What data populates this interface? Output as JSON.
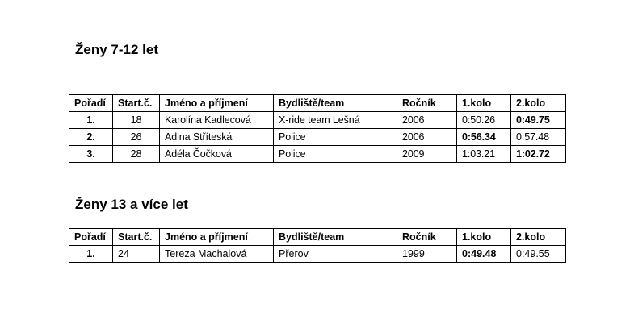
{
  "headers": [
    "Pořadí",
    "Start.č.",
    "Jméno a příjmení",
    "Bydliště/team",
    "Ročník",
    "1.kolo",
    "2.kolo"
  ],
  "sections": [
    {
      "title": "Ženy 7-12 let",
      "rows": [
        {
          "rank": "1.",
          "start": "18",
          "name": "Karolína Kadlecová",
          "team": "X-ride team Lešná",
          "year": "2006",
          "r1": "0:50.26",
          "r2": "0:49.75",
          "best": "r2"
        },
        {
          "rank": "2.",
          "start": "26",
          "name": "Adina Stříteská",
          "team": "Police",
          "year": "2006",
          "r1": "0:56.34",
          "r2": "0:57.48",
          "best": "r1"
        },
        {
          "rank": "3.",
          "start": "28",
          "name": "Adéla Čočková",
          "team": "Police",
          "year": "2009",
          "r1": "1:03.21",
          "r2": "1:02.72",
          "best": "r2"
        }
      ]
    },
    {
      "title": "Ženy 13 a více let",
      "rows": [
        {
          "rank": "1.",
          "start": "24",
          "name": "Tereza Machalová",
          "team": "Přerov",
          "year": "1999",
          "r1": "0:49.48",
          "r2": "0:49.55",
          "best": "r1"
        }
      ]
    }
  ]
}
